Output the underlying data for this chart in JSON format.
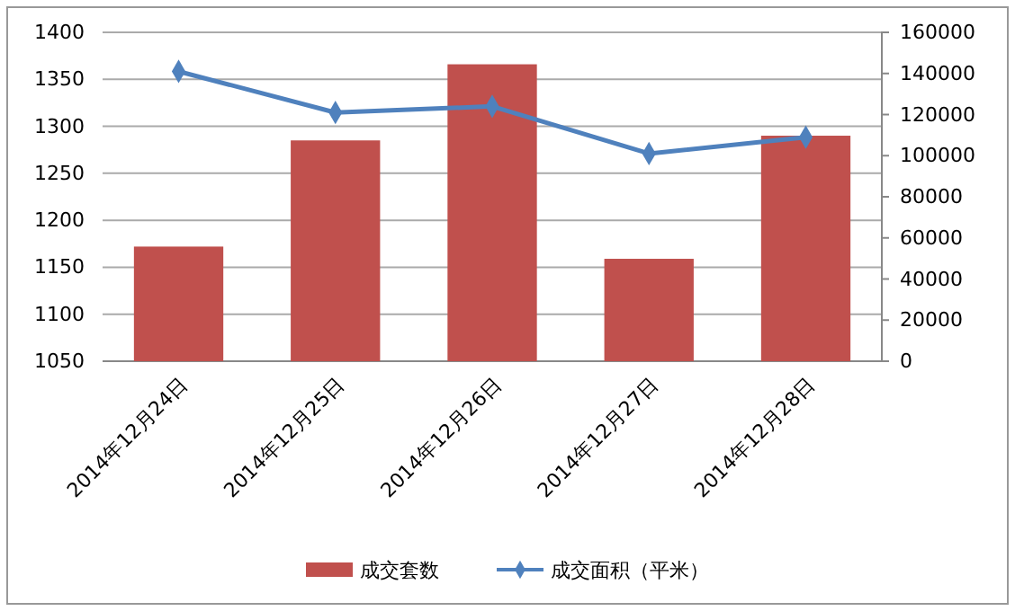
{
  "chart_data": {
    "type": "bar",
    "categories": [
      "2014年12月24日",
      "2014年12月25日",
      "2014年12月26日",
      "2014年12月27日",
      "2014年12月28日"
    ],
    "series": [
      {
        "name": "成交套数",
        "color": "#c0504d",
        "values": [
          1172,
          1285,
          1366,
          1159,
          1290
        ]
      },
      {
        "name": "成交面积（平米）",
        "type": "line",
        "axis": "y2",
        "color": "#4f81bd",
        "marker": "diamond",
        "values": [
          141000,
          121000,
          124000,
          101000,
          109000
        ]
      }
    ],
    "ylim": [
      1050,
      1400
    ],
    "yticks": [
      1050,
      1100,
      1150,
      1200,
      1250,
      1300,
      1350,
      1400
    ],
    "y2lim": [
      0,
      160000
    ],
    "y2ticks": [
      0,
      20000,
      40000,
      60000,
      80000,
      100000,
      120000,
      140000,
      160000
    ],
    "grid": "y",
    "legend": "bottom"
  }
}
